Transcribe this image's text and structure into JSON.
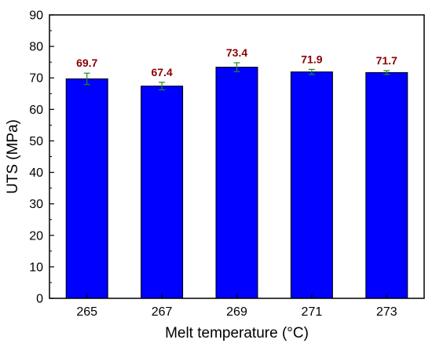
{
  "chart_data": {
    "type": "bar",
    "categories": [
      "265",
      "267",
      "269",
      "271",
      "273"
    ],
    "values": [
      69.7,
      67.4,
      73.4,
      71.9,
      71.7
    ],
    "error": [
      1.8,
      1.2,
      1.4,
      0.8,
      0.6
    ],
    "data_labels": [
      "69.7",
      "67.4",
      "73.4",
      "71.9",
      "71.7"
    ],
    "xlabel": "Melt temperature (°C)",
    "ylabel": "UTS (MPa)",
    "ylim": [
      0,
      90
    ],
    "yticks": [
      "0",
      "10",
      "20",
      "30",
      "40",
      "50",
      "60",
      "70",
      "80",
      "90"
    ],
    "grid": false,
    "colors": {
      "bar": "#0000ff",
      "bar_edge": "#000000",
      "error_bar": "#228b22",
      "data_label": "#8b0000"
    }
  }
}
